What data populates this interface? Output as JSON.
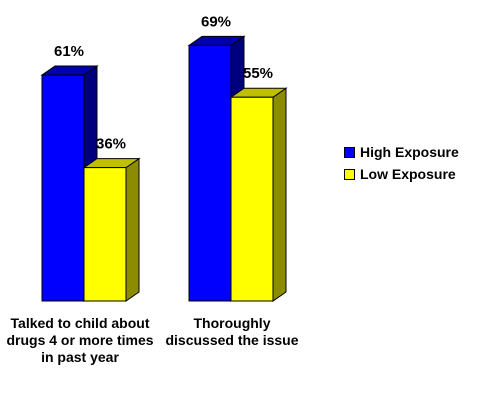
{
  "chart_data": {
    "type": "bar",
    "categories": [
      "Talked to child about drugs 4 or more times in past year",
      "Thoroughly discussed the issue"
    ],
    "series": [
      {
        "name": "High Exposure",
        "values": [
          61,
          69
        ],
        "labels": [
          "61%",
          "69%"
        ]
      },
      {
        "name": "Low Exposure",
        "values": [
          36,
          55
        ],
        "labels": [
          "36%",
          "55%"
        ]
      }
    ],
    "ylim": [
      0,
      100
    ],
    "grid": false,
    "legend_position": "right",
    "style": "3d",
    "colors": {
      "High Exposure": {
        "front": "#0000FF",
        "side": "#00007F",
        "top": "#0000B0"
      },
      "Low Exposure": {
        "front": "#FFFF00",
        "side": "#8C8C00",
        "top": "#BFBF00"
      }
    }
  },
  "legend": {
    "items": [
      "High Exposure",
      "Low Exposure"
    ]
  }
}
